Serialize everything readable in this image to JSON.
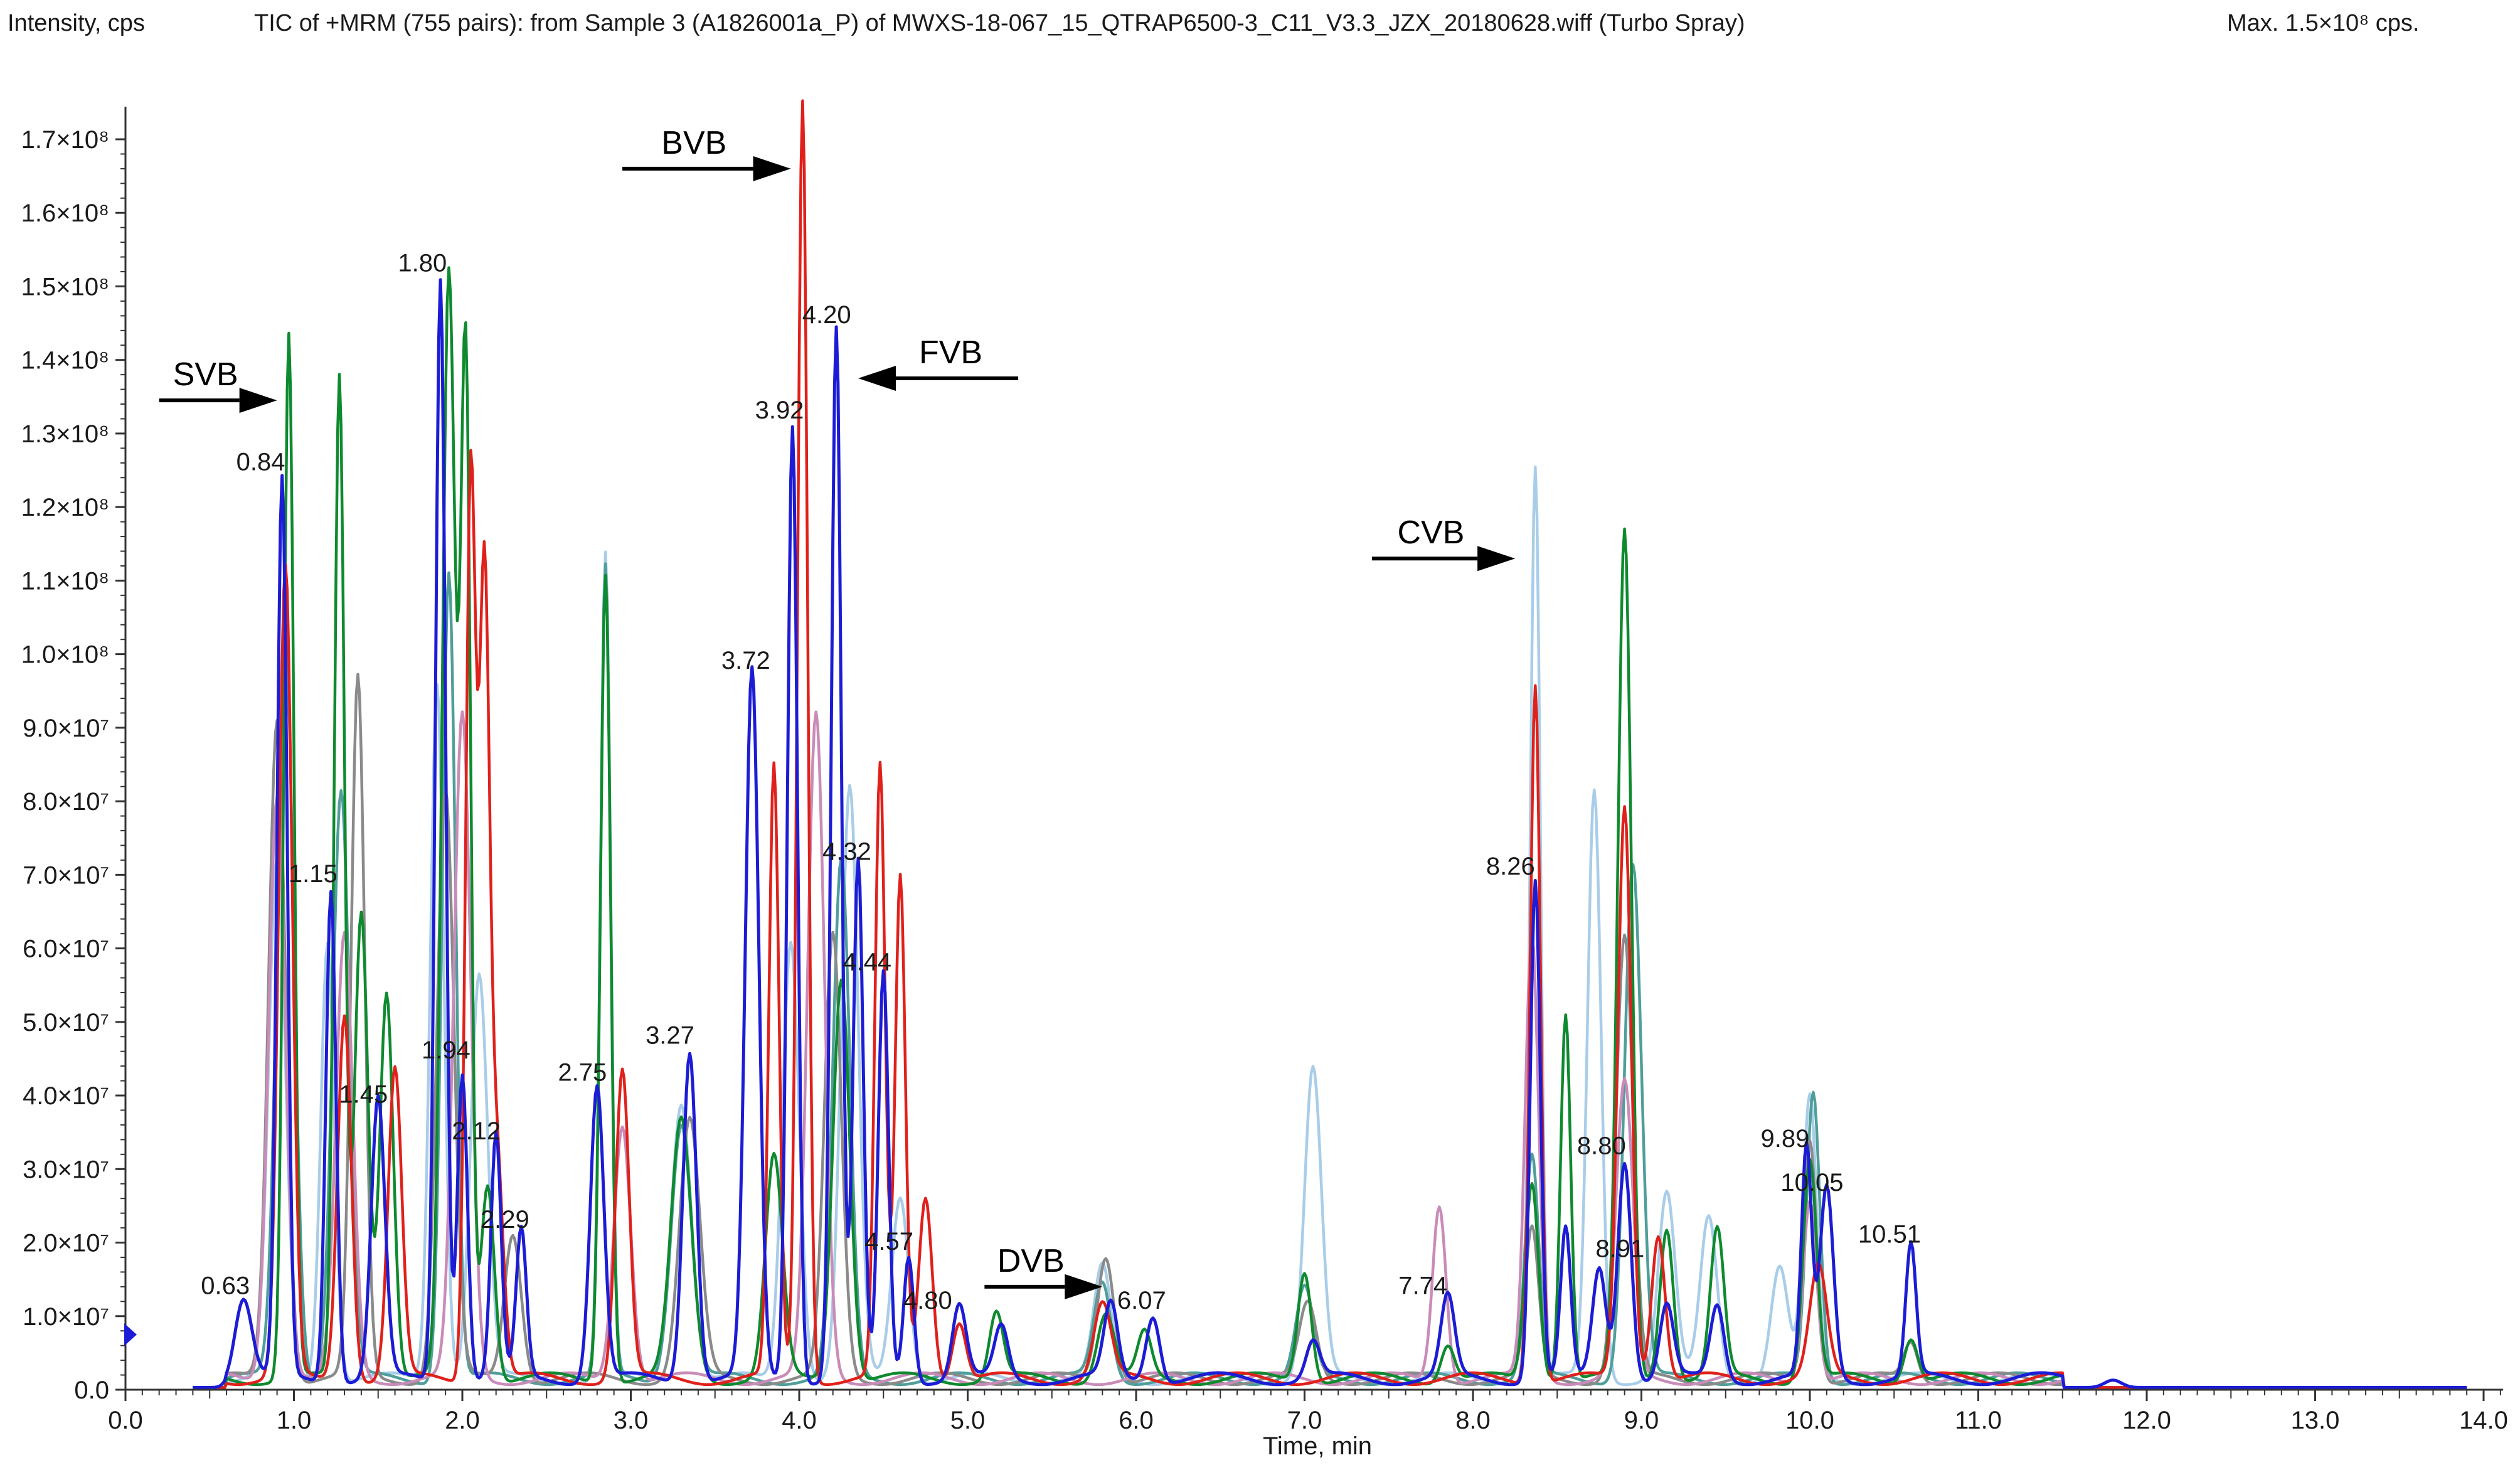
{
  "header": {
    "ylabel": "Intensity, cps",
    "title": "TIC of +MRM (755 pairs): from Sample 3 (A1826001a_P) of MWXS-18-067_15_QTRAP6500-3_C11_V3.3_JZX_20180628.wiff (Turbo Spray)",
    "max": "Max. 1.5×10⁸ cps."
  },
  "chart_data": {
    "type": "line",
    "xlabel": "Time, min",
    "ylabel": "Intensity, cps",
    "xlim": [
      0,
      14.2
    ],
    "ylim": [
      0,
      175000000
    ],
    "x_ticks": [
      0,
      1,
      2,
      3,
      4,
      5,
      6,
      7,
      8,
      9,
      10,
      11,
      12,
      13,
      14
    ],
    "x_tick_labels": [
      "0.0",
      "1.0",
      "2.0",
      "3.0",
      "4.0",
      "5.0",
      "6.0",
      "7.0",
      "8.0",
      "9.0",
      "10.0",
      "11.0",
      "12.0",
      "13.0",
      "14.0"
    ],
    "y_ticks": [
      0,
      10000000,
      20000000,
      30000000,
      40000000,
      50000000,
      60000000,
      70000000,
      80000000,
      90000000,
      100000000,
      110000000,
      120000000,
      130000000,
      140000000,
      150000000,
      160000000,
      170000000
    ],
    "y_tick_labels": [
      "0.0",
      "1.0×10⁷",
      "2.0×10⁷",
      "3.0×10⁷",
      "4.0×10⁷",
      "5.0×10⁷",
      "6.0×10⁷",
      "7.0×10⁷",
      "8.0×10⁷",
      "9.0×10⁷",
      "1.0×10⁸",
      "1.1×10⁸",
      "1.2×10⁸",
      "1.3×10⁸",
      "1.4×10⁸",
      "1.5×10⁸",
      "1.6×10⁸",
      "1.7×10⁸"
    ],
    "grid": false,
    "colors": {
      "blue": "#1c1cd6",
      "red": "#e0201a",
      "green": "#0e8a2e",
      "gray": "#8a8a8a",
      "lightblue": "#a9cde8",
      "teal": "#4f9e9a",
      "pink": "#c98bb8"
    },
    "series": [
      {
        "color_key": "lightblue",
        "peaks": [
          [
            0.9,
            70000000,
            0.05
          ],
          [
            1.2,
            60000000,
            0.04
          ],
          [
            1.85,
            95000000,
            0.04
          ],
          [
            2.1,
            55000000,
            0.05
          ],
          [
            2.85,
            112000000,
            0.03
          ],
          [
            3.3,
            38000000,
            0.06
          ],
          [
            3.95,
            60000000,
            0.05
          ],
          [
            4.3,
            80000000,
            0.05
          ],
          [
            4.6,
            25000000,
            0.05
          ],
          [
            5.8,
            15000000,
            0.05
          ],
          [
            7.05,
            42000000,
            0.05
          ],
          [
            8.37,
            124000000,
            0.03
          ],
          [
            8.72,
            80000000,
            0.04
          ],
          [
            9.15,
            25000000,
            0.05
          ],
          [
            9.4,
            22000000,
            0.05
          ],
          [
            9.82,
            15000000,
            0.05
          ],
          [
            10.0,
            38000000,
            0.04
          ]
        ]
      },
      {
        "color_key": "teal",
        "peaks": [
          [
            0.95,
            100000000,
            0.05
          ],
          [
            1.28,
            80000000,
            0.05
          ],
          [
            1.92,
            110000000,
            0.04
          ],
          [
            2.85,
            110000000,
            0.03
          ],
          [
            3.3,
            35000000,
            0.06
          ],
          [
            4.25,
            70000000,
            0.05
          ],
          [
            5.8,
            13000000,
            0.05
          ],
          [
            7.0,
            12000000,
            0.05
          ],
          [
            8.35,
            30000000,
            0.04
          ],
          [
            8.95,
            70000000,
            0.05
          ],
          [
            10.02,
            39000000,
            0.04
          ]
        ]
      },
      {
        "color_key": "gray",
        "peaks": [
          [
            0.9,
            90000000,
            0.05
          ],
          [
            1.38,
            95000000,
            0.04
          ],
          [
            1.9,
            80000000,
            0.05
          ],
          [
            2.3,
            20000000,
            0.05
          ],
          [
            3.35,
            35000000,
            0.06
          ],
          [
            4.2,
            60000000,
            0.05
          ],
          [
            5.82,
            17000000,
            0.05
          ],
          [
            7.02,
            10000000,
            0.05
          ],
          [
            8.35,
            20000000,
            0.04
          ],
          [
            8.9,
            60000000,
            0.05
          ],
          [
            10.0,
            33000000,
            0.04
          ],
          [
            10.6,
            5000000,
            0.04
          ]
        ]
      },
      {
        "color_key": "pink",
        "peaks": [
          [
            0.9,
            80000000,
            0.05
          ],
          [
            1.3,
            60000000,
            0.05
          ],
          [
            2.0,
            90000000,
            0.05
          ],
          [
            2.95,
            35000000,
            0.05
          ],
          [
            4.1,
            90000000,
            0.05
          ],
          [
            7.8,
            24000000,
            0.04
          ],
          [
            8.35,
            60000000,
            0.04
          ],
          [
            8.9,
            40000000,
            0.05
          ],
          [
            10.0,
            25000000,
            0.04
          ]
        ]
      },
      {
        "color_key": "green",
        "peaks": [
          [
            0.97,
            142000000,
            0.03
          ],
          [
            1.27,
            136000000,
            0.03
          ],
          [
            1.4,
            64000000,
            0.04
          ],
          [
            1.55,
            53000000,
            0.04
          ],
          [
            1.92,
            150000000,
            0.04
          ],
          [
            2.02,
            137000000,
            0.03
          ],
          [
            2.15,
            27000000,
            0.04
          ],
          [
            2.85,
            110000000,
            0.03
          ],
          [
            3.3,
            35000000,
            0.06
          ],
          [
            3.85,
            30000000,
            0.05
          ],
          [
            4.25,
            55000000,
            0.05
          ],
          [
            5.17,
            9000000,
            0.04
          ],
          [
            5.82,
            9000000,
            0.05
          ],
          [
            6.05,
            6000000,
            0.04
          ],
          [
            7.0,
            15000000,
            0.04
          ],
          [
            7.85,
            5000000,
            0.04
          ],
          [
            8.35,
            27000000,
            0.04
          ],
          [
            8.55,
            50000000,
            0.03
          ],
          [
            8.9,
            115000000,
            0.04
          ],
          [
            9.15,
            21000000,
            0.04
          ],
          [
            9.45,
            20000000,
            0.04
          ],
          [
            10.0,
            30000000,
            0.04
          ],
          [
            10.6,
            6000000,
            0.04
          ]
        ]
      },
      {
        "color_key": "red",
        "peaks": [
          [
            0.95,
            110000000,
            0.04
          ],
          [
            1.3,
            50000000,
            0.04
          ],
          [
            1.6,
            42000000,
            0.04
          ],
          [
            2.05,
            124000000,
            0.03
          ],
          [
            2.13,
            104000000,
            0.03
          ],
          [
            2.2,
            32000000,
            0.04
          ],
          [
            2.95,
            42000000,
            0.04
          ],
          [
            3.85,
            83000000,
            0.03
          ],
          [
            4.02,
            174000000,
            0.03
          ],
          [
            4.48,
            83000000,
            0.03
          ],
          [
            4.6,
            68000000,
            0.03
          ],
          [
            4.75,
            25000000,
            0.04
          ],
          [
            4.95,
            8000000,
            0.04
          ],
          [
            5.8,
            10000000,
            0.05
          ],
          [
            8.37,
            95000000,
            0.03
          ],
          [
            8.9,
            78000000,
            0.04
          ],
          [
            9.1,
            20000000,
            0.04
          ],
          [
            10.05,
            15000000,
            0.05
          ]
        ]
      },
      {
        "color_key": "blue",
        "peaks": [
          [
            0.7,
            11000000,
            0.05
          ],
          [
            0.93,
            122000000,
            0.03
          ],
          [
            1.22,
            67000000,
            0.03
          ],
          [
            1.5,
            38000000,
            0.04
          ],
          [
            1.87,
            150000000,
            0.03
          ],
          [
            2.0,
            42000000,
            0.03
          ],
          [
            2.2,
            33000000,
            0.03
          ],
          [
            2.35,
            20000000,
            0.03
          ],
          [
            2.8,
            40000000,
            0.04
          ],
          [
            3.35,
            45000000,
            0.04
          ],
          [
            3.72,
            96000000,
            0.04
          ],
          [
            3.96,
            130000000,
            0.03
          ],
          [
            4.22,
            143000000,
            0.03
          ],
          [
            4.35,
            70000000,
            0.03
          ],
          [
            4.5,
            55000000,
            0.03
          ],
          [
            4.65,
            17000000,
            0.03
          ],
          [
            4.95,
            10000000,
            0.04
          ],
          [
            5.2,
            7000000,
            0.04
          ],
          [
            5.85,
            10000000,
            0.04
          ],
          [
            6.1,
            9000000,
            0.04
          ],
          [
            7.05,
            5000000,
            0.04
          ],
          [
            7.85,
            11000000,
            0.04
          ],
          [
            8.37,
            68000000,
            0.03
          ],
          [
            8.55,
            20000000,
            0.03
          ],
          [
            8.75,
            15000000,
            0.04
          ],
          [
            8.9,
            30000000,
            0.04
          ],
          [
            9.15,
            10000000,
            0.04
          ],
          [
            9.45,
            10000000,
            0.04
          ],
          [
            9.98,
            31000000,
            0.03
          ],
          [
            10.1,
            26000000,
            0.04
          ],
          [
            10.6,
            18000000,
            0.03
          ],
          [
            11.8,
            1000000,
            0.05
          ]
        ]
      }
    ],
    "peak_labels": [
      {
        "x": 0.63,
        "y": 12000000,
        "text": "0.63"
      },
      {
        "x": 0.84,
        "y": 124000000,
        "text": "0.84"
      },
      {
        "x": 1.15,
        "y": 68000000,
        "text": "1.15"
      },
      {
        "x": 1.45,
        "y": 38000000,
        "text": "1.45"
      },
      {
        "x": 1.8,
        "y": 151000000,
        "text": "1.80"
      },
      {
        "x": 1.94,
        "y": 44000000,
        "text": "1.94"
      },
      {
        "x": 2.12,
        "y": 33000000,
        "text": "2.12"
      },
      {
        "x": 2.29,
        "y": 21000000,
        "text": "2.29"
      },
      {
        "x": 2.75,
        "y": 41000000,
        "text": "2.75"
      },
      {
        "x": 3.27,
        "y": 46000000,
        "text": "3.27"
      },
      {
        "x": 3.72,
        "y": 97000000,
        "text": "3.72"
      },
      {
        "x": 3.92,
        "y": 131000000,
        "text": "3.92"
      },
      {
        "x": 4.2,
        "y": 144000000,
        "text": "4.20"
      },
      {
        "x": 4.32,
        "y": 71000000,
        "text": "4.32"
      },
      {
        "x": 4.44,
        "y": 56000000,
        "text": "4.44"
      },
      {
        "x": 4.57,
        "y": 18000000,
        "text": "4.57"
      },
      {
        "x": 4.8,
        "y": 10000000,
        "text": "4.80"
      },
      {
        "x": 6.07,
        "y": 10000000,
        "text": "6.07"
      },
      {
        "x": 7.74,
        "y": 12000000,
        "text": "7.74"
      },
      {
        "x": 8.26,
        "y": 69000000,
        "text": "8.26"
      },
      {
        "x": 8.8,
        "y": 31000000,
        "text": "8.80"
      },
      {
        "x": 8.91,
        "y": 17000000,
        "text": "8.91"
      },
      {
        "x": 9.89,
        "y": 32000000,
        "text": "9.89"
      },
      {
        "x": 10.05,
        "y": 26000000,
        "text": "10.05"
      },
      {
        "x": 10.51,
        "y": 19000000,
        "text": "10.51"
      }
    ],
    "annotations": [
      {
        "text": "SVB",
        "tail_x": 0.2,
        "tip_x": 0.9,
        "y": 134500000,
        "label_side": "above"
      },
      {
        "text": "BVB",
        "tail_x": 2.95,
        "tip_x": 3.95,
        "y": 166000000,
        "label_side": "above"
      },
      {
        "text": "FVB",
        "tail_x": 5.3,
        "tip_x": 4.35,
        "y": 137500000,
        "label_side": "above"
      },
      {
        "text": "CVB",
        "tail_x": 7.4,
        "tip_x": 8.25,
        "y": 113000000,
        "label_side": "above"
      },
      {
        "text": "DVB",
        "tail_x": 5.1,
        "tip_x": 5.8,
        "y": 14000000,
        "label_side": "above"
      }
    ]
  }
}
